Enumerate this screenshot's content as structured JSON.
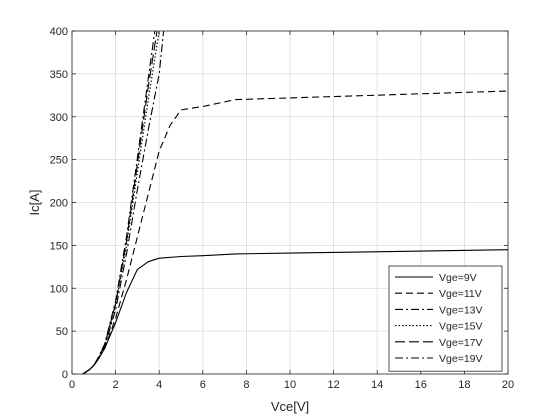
{
  "chart_data": {
    "type": "line",
    "title": "",
    "xlabel": "Vce[V]",
    "ylabel": "Ic[A]",
    "xlim": [
      0,
      20
    ],
    "ylim": [
      0,
      400
    ],
    "xticks": [
      0,
      2,
      4,
      6,
      8,
      10,
      12,
      14,
      16,
      18,
      20
    ],
    "yticks": [
      0,
      50,
      100,
      150,
      200,
      250,
      300,
      350,
      400
    ],
    "grid": true,
    "legend_position": "lower-right",
    "series": [
      {
        "name": "Vge=9V",
        "dash": "solid",
        "x": [
          0.5,
          0.8,
          1.0,
          1.2,
          1.5,
          2.0,
          2.5,
          3.0,
          3.5,
          4.0,
          5.0,
          6.0,
          7.5,
          10.0,
          15.0,
          20.0
        ],
        "y": [
          0,
          5,
          10,
          17,
          30,
          60,
          95,
          122,
          131,
          135,
          137,
          138,
          140,
          141,
          143,
          145
        ]
      },
      {
        "name": "Vge=11V",
        "dash": "dashed",
        "x": [
          0.5,
          0.8,
          1.0,
          1.2,
          1.5,
          2.0,
          2.5,
          3.0,
          3.5,
          4.0,
          4.5,
          5.0,
          6.0,
          7.5,
          10.0,
          15.0,
          20.0
        ],
        "y": [
          0,
          5,
          10,
          17,
          30,
          65,
          110,
          160,
          210,
          260,
          290,
          308,
          312,
          320,
          322,
          326,
          330
        ]
      },
      {
        "name": "Vge=13V",
        "dash": "dashdot",
        "x": [
          0.5,
          0.8,
          1.0,
          1.2,
          1.5,
          2.0,
          2.5,
          3.0,
          3.5,
          4.0,
          4.2
        ],
        "y": [
          0,
          5,
          10,
          18,
          32,
          75,
          140,
          215,
          285,
          350,
          400
        ]
      },
      {
        "name": "Vge=15V",
        "dash": "dotted",
        "x": [
          0.5,
          0.8,
          1.0,
          1.2,
          1.5,
          2.0,
          2.5,
          3.0,
          3.5,
          4.0
        ],
        "y": [
          0,
          5,
          10,
          18,
          33,
          80,
          150,
          235,
          320,
          400
        ]
      },
      {
        "name": "Vge=17V",
        "dash": "longdash",
        "x": [
          0.5,
          0.8,
          1.0,
          1.2,
          1.5,
          2.0,
          2.5,
          3.0,
          3.5,
          3.9
        ],
        "y": [
          0,
          5,
          10,
          19,
          34,
          82,
          155,
          245,
          335,
          400
        ]
      },
      {
        "name": "Vge=19V",
        "dash": "dashdot",
        "x": [
          0.5,
          0.8,
          1.0,
          1.2,
          1.5,
          2.0,
          2.5,
          3.0,
          3.5,
          3.8
        ],
        "y": [
          0,
          5,
          10,
          19,
          35,
          85,
          160,
          252,
          345,
          400
        ]
      }
    ]
  }
}
